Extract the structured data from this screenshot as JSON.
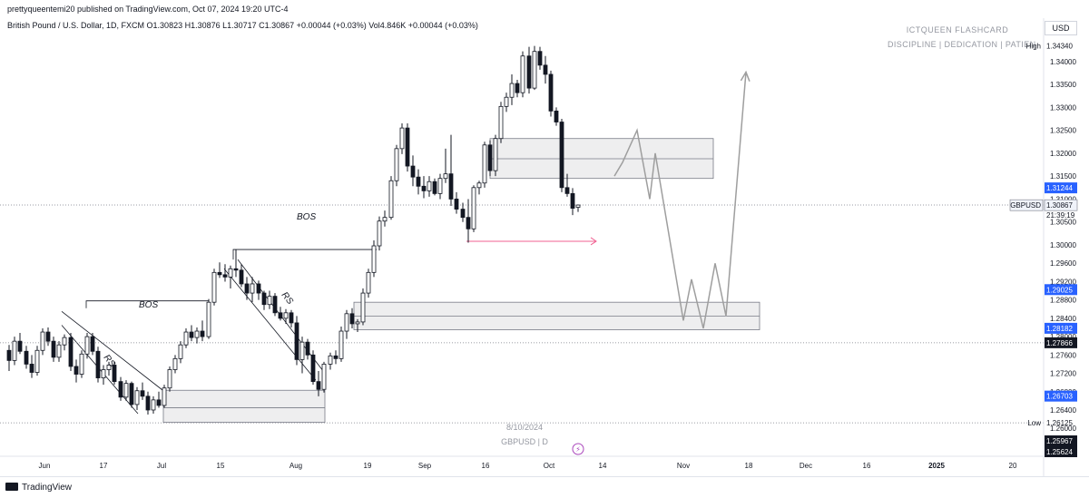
{
  "header": {
    "published": "prettyqueentemi20 published on TradingView.com, Oct 07, 2024 19:20 UTC-4",
    "legend": "British Pound / U.S. Dollar, 1D, FXCM  O1.30823  H1.30876  L1.30717  C1.30867  +0.00044 (+0.03%)  Vol4.846K  +0.00044 (+0.03%)"
  },
  "watermark": {
    "title": "ICTQUEEN FLASHCARD",
    "subtitle": "DISCIPLINE | DEDICATION | PATIEN",
    "date": "8/10/2024",
    "symbol": "GBPUSD | D"
  },
  "currency_button": "USD",
  "footer": {
    "brand": "TradingView"
  },
  "colors": {
    "candle": "#131722",
    "zone_fill": "#eeeeef",
    "zone_border": "#787b86",
    "projection": "#9e9e9e",
    "arrow": "#f06292",
    "price_tag_blue": "#2962ff",
    "price_tag_dark": "#131722"
  },
  "chart_data": {
    "type": "candlestick",
    "ylim": [
      1.2545,
      1.3455
    ],
    "y_ticks": [
      "1.34000",
      "1.33500",
      "1.33000",
      "1.32500",
      "1.32000",
      "1.31500",
      "1.31000",
      "1.30500",
      "1.30000",
      "1.29600",
      "1.29200",
      "1.28800",
      "1.28400",
      "1.28000",
      "1.27600",
      "1.27200",
      "1.26800",
      "1.26400",
      "1.26000"
    ],
    "x_ticks": [
      "Jun",
      "17",
      "Jul",
      "15",
      "Aug",
      "19",
      "Sep",
      "16",
      "Oct",
      "14",
      "Nov",
      "18",
      "Dec",
      "16",
      "2025",
      "20"
    ],
    "price_labels": [
      {
        "label": "High",
        "value": "1.34340",
        "style": "plain"
      },
      {
        "label": "",
        "value": "1.31244",
        "style": "blue"
      },
      {
        "label": "GBPUSD",
        "value": "1.30867",
        "style": "plain"
      },
      {
        "label": "",
        "value": "21:39:19",
        "style": "plain"
      },
      {
        "label": "",
        "value": "1.29025",
        "style": "blue"
      },
      {
        "label": "",
        "value": "1.28182",
        "style": "blue"
      },
      {
        "label": "",
        "value": "1.27866",
        "style": "dark"
      },
      {
        "label": "",
        "value": "1.26703",
        "style": "blue"
      },
      {
        "label": "Low",
        "value": "1.26125",
        "style": "plain"
      },
      {
        "label": "",
        "value": "1.25967",
        "style": "dark"
      },
      {
        "label": "",
        "value": "1.25624",
        "style": "dark"
      }
    ],
    "annotations": [
      "BOS",
      "BOS",
      "RS",
      "RS"
    ],
    "candles": [
      {
        "x": 10,
        "o": 1.277,
        "h": 1.2782,
        "l": 1.2725,
        "c": 1.2748
      },
      {
        "x": 16,
        "o": 1.2748,
        "h": 1.28,
        "l": 1.2738,
        "c": 1.279
      },
      {
        "x": 22,
        "o": 1.279,
        "h": 1.2808,
        "l": 1.2762,
        "c": 1.2768
      },
      {
        "x": 29,
        "o": 1.2768,
        "h": 1.278,
        "l": 1.273,
        "c": 1.274
      },
      {
        "x": 35,
        "o": 1.274,
        "h": 1.276,
        "l": 1.271,
        "c": 1.2722
      },
      {
        "x": 41,
        "o": 1.2722,
        "h": 1.278,
        "l": 1.2715,
        "c": 1.277
      },
      {
        "x": 47,
        "o": 1.277,
        "h": 1.2818,
        "l": 1.276,
        "c": 1.281
      },
      {
        "x": 53,
        "o": 1.281,
        "h": 1.282,
        "l": 1.278,
        "c": 1.279
      },
      {
        "x": 59,
        "o": 1.279,
        "h": 1.28,
        "l": 1.2745,
        "c": 1.2755
      },
      {
        "x": 65,
        "o": 1.2755,
        "h": 1.279,
        "l": 1.2745,
        "c": 1.2782
      },
      {
        "x": 71,
        "o": 1.2782,
        "h": 1.2805,
        "l": 1.277,
        "c": 1.2798
      },
      {
        "x": 78,
        "o": 1.2798,
        "h": 1.2808,
        "l": 1.2725,
        "c": 1.2735
      },
      {
        "x": 84,
        "o": 1.2735,
        "h": 1.275,
        "l": 1.27,
        "c": 1.2718
      },
      {
        "x": 90,
        "o": 1.2718,
        "h": 1.277,
        "l": 1.271,
        "c": 1.2762
      },
      {
        "x": 96,
        "o": 1.2762,
        "h": 1.2808,
        "l": 1.2752,
        "c": 1.28
      },
      {
        "x": 102,
        "o": 1.28,
        "h": 1.2808,
        "l": 1.276,
        "c": 1.2768
      },
      {
        "x": 108,
        "o": 1.2768,
        "h": 1.2778,
        "l": 1.27,
        "c": 1.271
      },
      {
        "x": 114,
        "o": 1.271,
        "h": 1.2738,
        "l": 1.2695,
        "c": 1.2728
      },
      {
        "x": 120,
        "o": 1.2728,
        "h": 1.2745,
        "l": 1.2715,
        "c": 1.2738
      },
      {
        "x": 126,
        "o": 1.2738,
        "h": 1.2745,
        "l": 1.2695,
        "c": 1.2702
      },
      {
        "x": 133,
        "o": 1.2702,
        "h": 1.2712,
        "l": 1.266,
        "c": 1.2668
      },
      {
        "x": 139,
        "o": 1.2668,
        "h": 1.2705,
        "l": 1.266,
        "c": 1.2698
      },
      {
        "x": 145,
        "o": 1.2698,
        "h": 1.2702,
        "l": 1.2645,
        "c": 1.2652
      },
      {
        "x": 151,
        "o": 1.2652,
        "h": 1.269,
        "l": 1.264,
        "c": 1.2682
      },
      {
        "x": 157,
        "o": 1.2682,
        "h": 1.27,
        "l": 1.2662,
        "c": 1.267
      },
      {
        "x": 163,
        "o": 1.267,
        "h": 1.268,
        "l": 1.263,
        "c": 1.264
      },
      {
        "x": 169,
        "o": 1.264,
        "h": 1.267,
        "l": 1.2632,
        "c": 1.2662
      },
      {
        "x": 175,
        "o": 1.2662,
        "h": 1.268,
        "l": 1.2645,
        "c": 1.265
      },
      {
        "x": 181,
        "o": 1.265,
        "h": 1.2695,
        "l": 1.2645,
        "c": 1.2688
      },
      {
        "x": 187,
        "o": 1.2688,
        "h": 1.2735,
        "l": 1.268,
        "c": 1.2728
      },
      {
        "x": 193,
        "o": 1.2728,
        "h": 1.276,
        "l": 1.272,
        "c": 1.2752
      },
      {
        "x": 199,
        "o": 1.2752,
        "h": 1.279,
        "l": 1.2742,
        "c": 1.2782
      },
      {
        "x": 205,
        "o": 1.2782,
        "h": 1.2818,
        "l": 1.2775,
        "c": 1.281
      },
      {
        "x": 211,
        "o": 1.281,
        "h": 1.2825,
        "l": 1.279,
        "c": 1.2798
      },
      {
        "x": 217,
        "o": 1.2798,
        "h": 1.282,
        "l": 1.2785,
        "c": 1.2812
      },
      {
        "x": 223,
        "o": 1.2812,
        "h": 1.2835,
        "l": 1.279,
        "c": 1.28
      },
      {
        "x": 230,
        "o": 1.28,
        "h": 1.2882,
        "l": 1.2795,
        "c": 1.2875
      },
      {
        "x": 236,
        "o": 1.2875,
        "h": 1.2948,
        "l": 1.2868,
        "c": 1.294
      },
      {
        "x": 242,
        "o": 1.294,
        "h": 1.2962,
        "l": 1.2928,
        "c": 1.2935
      },
      {
        "x": 248,
        "o": 1.2935,
        "h": 1.2958,
        "l": 1.292,
        "c": 1.293
      },
      {
        "x": 254,
        "o": 1.293,
        "h": 1.2955,
        "l": 1.2905,
        "c": 1.2948
      },
      {
        "x": 260,
        "o": 1.2948,
        "h": 1.299,
        "l": 1.293,
        "c": 1.2945
      },
      {
        "x": 266,
        "o": 1.2945,
        "h": 1.2958,
        "l": 1.2908,
        "c": 1.2915
      },
      {
        "x": 272,
        "o": 1.2915,
        "h": 1.293,
        "l": 1.288,
        "c": 1.2895
      },
      {
        "x": 278,
        "o": 1.2895,
        "h": 1.293,
        "l": 1.2875,
        "c": 1.2915
      },
      {
        "x": 285,
        "o": 1.2915,
        "h": 1.2922,
        "l": 1.288,
        "c": 1.2895
      },
      {
        "x": 291,
        "o": 1.2895,
        "h": 1.29,
        "l": 1.2858,
        "c": 1.287
      },
      {
        "x": 297,
        "o": 1.287,
        "h": 1.29,
        "l": 1.286,
        "c": 1.2888
      },
      {
        "x": 303,
        "o": 1.2888,
        "h": 1.2895,
        "l": 1.2845,
        "c": 1.2852
      },
      {
        "x": 309,
        "o": 1.2852,
        "h": 1.2865,
        "l": 1.2835,
        "c": 1.284
      },
      {
        "x": 315,
        "o": 1.284,
        "h": 1.286,
        "l": 1.2828,
        "c": 1.2852
      },
      {
        "x": 321,
        "o": 1.2852,
        "h": 1.2858,
        "l": 1.282,
        "c": 1.283
      },
      {
        "x": 327,
        "o": 1.283,
        "h": 1.2845,
        "l": 1.2738,
        "c": 1.275
      },
      {
        "x": 333,
        "o": 1.275,
        "h": 1.28,
        "l": 1.272,
        "c": 1.2788
      },
      {
        "x": 339,
        "o": 1.2788,
        "h": 1.2795,
        "l": 1.275,
        "c": 1.276
      },
      {
        "x": 345,
        "o": 1.276,
        "h": 1.277,
        "l": 1.2695,
        "c": 1.2702
      },
      {
        "x": 351,
        "o": 1.2702,
        "h": 1.2725,
        "l": 1.267,
        "c": 1.2685
      },
      {
        "x": 357,
        "o": 1.2685,
        "h": 1.2745,
        "l": 1.2678,
        "c": 1.274
      },
      {
        "x": 364,
        "o": 1.274,
        "h": 1.2765,
        "l": 1.2728,
        "c": 1.2758
      },
      {
        "x": 370,
        "o": 1.2758,
        "h": 1.277,
        "l": 1.274,
        "c": 1.2752
      },
      {
        "x": 376,
        "o": 1.2752,
        "h": 1.2822,
        "l": 1.2745,
        "c": 1.2812
      },
      {
        "x": 382,
        "o": 1.2812,
        "h": 1.2858,
        "l": 1.2795,
        "c": 1.285
      },
      {
        "x": 388,
        "o": 1.285,
        "h": 1.2862,
        "l": 1.2818,
        "c": 1.2828
      },
      {
        "x": 394,
        "o": 1.2828,
        "h": 1.2838,
        "l": 1.281,
        "c": 1.2832
      },
      {
        "x": 400,
        "o": 1.2832,
        "h": 1.2905,
        "l": 1.2825,
        "c": 1.2895
      },
      {
        "x": 406,
        "o": 1.2895,
        "h": 1.2948,
        "l": 1.2885,
        "c": 1.294
      },
      {
        "x": 412,
        "o": 1.294,
        "h": 1.301,
        "l": 1.293,
        "c": 1.2998
      },
      {
        "x": 418,
        "o": 1.2998,
        "h": 1.3062,
        "l": 1.2988,
        "c": 1.3052
      },
      {
        "x": 424,
        "o": 1.3052,
        "h": 1.3075,
        "l": 1.304,
        "c": 1.306
      },
      {
        "x": 431,
        "o": 1.306,
        "h": 1.315,
        "l": 1.3055,
        "c": 1.314
      },
      {
        "x": 437,
        "o": 1.314,
        "h": 1.3218,
        "l": 1.3128,
        "c": 1.321
      },
      {
        "x": 443,
        "o": 1.321,
        "h": 1.3265,
        "l": 1.3198,
        "c": 1.3255
      },
      {
        "x": 449,
        "o": 1.3255,
        "h": 1.3265,
        "l": 1.316,
        "c": 1.3172
      },
      {
        "x": 455,
        "o": 1.3172,
        "h": 1.3195,
        "l": 1.3128,
        "c": 1.3148
      },
      {
        "x": 461,
        "o": 1.3148,
        "h": 1.3165,
        "l": 1.311,
        "c": 1.3128
      },
      {
        "x": 467,
        "o": 1.3128,
        "h": 1.315,
        "l": 1.3102,
        "c": 1.3118
      },
      {
        "x": 473,
        "o": 1.3118,
        "h": 1.315,
        "l": 1.3105,
        "c": 1.3138
      },
      {
        "x": 479,
        "o": 1.3138,
        "h": 1.3145,
        "l": 1.3108,
        "c": 1.3112
      },
      {
        "x": 485,
        "o": 1.3112,
        "h": 1.3155,
        "l": 1.31,
        "c": 1.3145
      },
      {
        "x": 491,
        "o": 1.3145,
        "h": 1.321,
        "l": 1.3135,
        "c": 1.3155
      },
      {
        "x": 497,
        "o": 1.3155,
        "h": 1.324,
        "l": 1.3085,
        "c": 1.31
      },
      {
        "x": 503,
        "o": 1.31,
        "h": 1.3115,
        "l": 1.3068,
        "c": 1.3078
      },
      {
        "x": 510,
        "o": 1.3078,
        "h": 1.3092,
        "l": 1.305,
        "c": 1.306
      },
      {
        "x": 516,
        "o": 1.306,
        "h": 1.31,
        "l": 1.3005,
        "c": 1.3035
      },
      {
        "x": 522,
        "o": 1.3035,
        "h": 1.313,
        "l": 1.3028,
        "c": 1.3125
      },
      {
        "x": 528,
        "o": 1.3125,
        "h": 1.314,
        "l": 1.311,
        "c": 1.3135
      },
      {
        "x": 534,
        "o": 1.3135,
        "h": 1.3225,
        "l": 1.3125,
        "c": 1.3218
      },
      {
        "x": 540,
        "o": 1.3218,
        "h": 1.3228,
        "l": 1.315,
        "c": 1.3162
      },
      {
        "x": 546,
        "o": 1.3162,
        "h": 1.324,
        "l": 1.315,
        "c": 1.3232
      },
      {
        "x": 552,
        "o": 1.3232,
        "h": 1.3312,
        "l": 1.3222,
        "c": 1.3302
      },
      {
        "x": 558,
        "o": 1.3302,
        "h": 1.3332,
        "l": 1.329,
        "c": 1.3322
      },
      {
        "x": 564,
        "o": 1.3322,
        "h": 1.3372,
        "l": 1.3305,
        "c": 1.3352
      },
      {
        "x": 570,
        "o": 1.3352,
        "h": 1.336,
        "l": 1.3322,
        "c": 1.3332
      },
      {
        "x": 576,
        "o": 1.3332,
        "h": 1.3422,
        "l": 1.3322,
        "c": 1.3412
      },
      {
        "x": 583,
        "o": 1.3412,
        "h": 1.3432,
        "l": 1.333,
        "c": 1.3342
      },
      {
        "x": 589,
        "o": 1.3342,
        "h": 1.3434,
        "l": 1.3338,
        "c": 1.3422
      },
      {
        "x": 595,
        "o": 1.3422,
        "h": 1.3432,
        "l": 1.3382,
        "c": 1.3392
      },
      {
        "x": 601,
        "o": 1.3392,
        "h": 1.3412,
        "l": 1.3352,
        "c": 1.3372
      },
      {
        "x": 607,
        "o": 1.3372,
        "h": 1.338,
        "l": 1.328,
        "c": 1.3292
      },
      {
        "x": 613,
        "o": 1.3292,
        "h": 1.33,
        "l": 1.326,
        "c": 1.3268
      },
      {
        "x": 619,
        "o": 1.3268,
        "h": 1.3275,
        "l": 1.3115,
        "c": 1.3125
      },
      {
        "x": 625,
        "o": 1.3125,
        "h": 1.3155,
        "l": 1.3105,
        "c": 1.3112
      },
      {
        "x": 631,
        "o": 1.3112,
        "h": 1.3124,
        "l": 1.3065,
        "c": 1.308
      },
      {
        "x": 637,
        "o": 1.3082,
        "h": 1.3088,
        "l": 1.3072,
        "c": 1.3087
      }
    ],
    "zones": [
      {
        "x1": 540,
        "x2": 786,
        "top": 1.3232,
        "bottom": 1.3145,
        "mid": 1.3188
      },
      {
        "x1": 390,
        "x2": 837,
        "top": 1.2875,
        "bottom": 1.2815,
        "mid": 1.2845
      },
      {
        "x1": 180,
        "x2": 358,
        "top": 1.2683,
        "bottom": 1.2613,
        "mid": 1.2645
      }
    ],
    "lines": [
      {
        "kind": "bos",
        "points": [
          [
            95,
            1.2862
          ],
          [
            95,
            1.2878
          ],
          [
            230,
            1.2878
          ]
        ]
      },
      {
        "kind": "bos",
        "points": [
          [
            257,
            1.2968
          ],
          [
            257,
            1.299
          ],
          [
            415,
            1.299
          ]
        ]
      },
      {
        "kind": "rs",
        "points": [
          [
            68,
            1.2855
          ],
          [
            180,
            1.2682
          ]
        ]
      },
      {
        "kind": "rs",
        "points": [
          [
            68,
            1.2825
          ],
          [
            152,
            1.2632
          ]
        ]
      },
      {
        "kind": "rs",
        "points": [
          [
            262,
            1.2968
          ],
          [
            358,
            1.272
          ]
        ]
      },
      {
        "kind": "rs",
        "points": [
          [
            247,
            1.2948
          ],
          [
            348,
            1.2705
          ]
        ]
      },
      {
        "kind": "dotted",
        "points": [
          [
            0,
            1.3087
          ],
          [
            1150,
            1.3087
          ]
        ]
      },
      {
        "kind": "dotted",
        "points": [
          [
            0,
            1.27866
          ],
          [
            1150,
            1.27866
          ]
        ]
      },
      {
        "kind": "dotted",
        "points": [
          [
            0,
            1.2612
          ],
          [
            1150,
            1.2612
          ]
        ]
      }
    ],
    "projection": [
      [
        677,
        1.315
      ],
      [
        686,
        1.318
      ],
      [
        702,
        1.325
      ],
      [
        716,
        1.31
      ],
      [
        722,
        1.32
      ],
      [
        753,
        1.2835
      ],
      [
        762,
        1.2925
      ],
      [
        775,
        1.2818
      ],
      [
        788,
        1.296
      ],
      [
        800,
        1.2845
      ],
      [
        822,
        1.3377
      ]
    ],
    "target_arrow": {
      "x1": 514,
      "x2": 657,
      "y": 1.3008
    }
  }
}
